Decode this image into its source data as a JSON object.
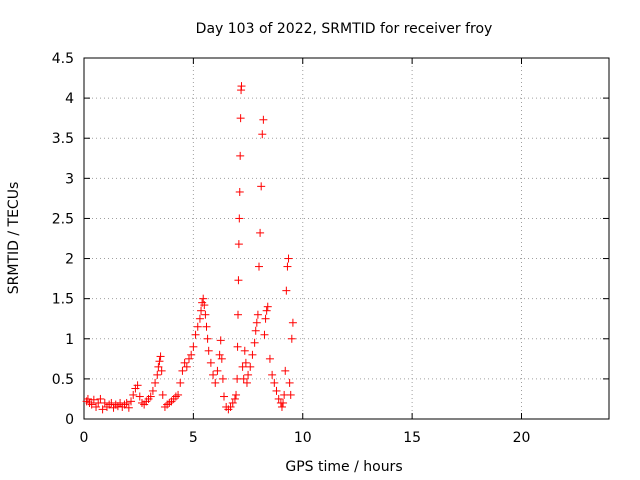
{
  "chart_data": {
    "type": "scatter",
    "title": "Day 103 of 2022, SRMTID for receiver froy",
    "xlabel": "GPS time / hours",
    "ylabel": "SRMTID / TECUs",
    "xlim": [
      0,
      24
    ],
    "ylim": [
      0,
      4.5
    ],
    "x_ticks": [
      0,
      5,
      10,
      15,
      20
    ],
    "y_ticks": [
      0,
      0.5,
      1,
      1.5,
      2,
      2.5,
      3,
      3.5,
      4,
      4.5
    ],
    "x_tick_labels": [
      "0",
      "5",
      "10",
      "15",
      "20"
    ],
    "y_tick_labels": [
      "0",
      "0.5",
      "1",
      "1.5",
      "2",
      "2.5",
      "3",
      "3.5",
      "4",
      "4.5"
    ],
    "grid": true,
    "marker": "+",
    "marker_color": "#ff0000",
    "series": [
      {
        "name": "SRMTID",
        "x": [
          0.12,
          0.18,
          0.25,
          0.35,
          0.45,
          0.55,
          0.65,
          0.75,
          0.85,
          0.95,
          1.05,
          1.15,
          1.25,
          1.35,
          1.45,
          1.55,
          1.65,
          1.75,
          1.85,
          1.95,
          2.05,
          2.15,
          2.25,
          2.35,
          2.45,
          2.55,
          2.65,
          2.75,
          2.85,
          2.95,
          3.05,
          3.15,
          3.25,
          3.35,
          3.4,
          3.45,
          3.5,
          3.55,
          3.6,
          3.7,
          3.8,
          3.9,
          4.0,
          4.1,
          4.2,
          4.3,
          4.4,
          4.5,
          4.6,
          4.7,
          4.8,
          4.9,
          5.0,
          5.1,
          5.2,
          5.3,
          5.35,
          5.4,
          5.45,
          5.5,
          5.55,
          5.6,
          5.65,
          5.7,
          5.8,
          5.9,
          6.0,
          6.1,
          6.2,
          6.25,
          6.3,
          6.35,
          6.4,
          6.5,
          6.6,
          6.7,
          6.8,
          6.9,
          6.95,
          7.0,
          7.02,
          7.04,
          7.06,
          7.08,
          7.1,
          7.12,
          7.14,
          7.16,
          7.18,
          7.2,
          7.25,
          7.3,
          7.35,
          7.4,
          7.45,
          7.5,
          7.6,
          7.7,
          7.8,
          7.85,
          7.9,
          7.95,
          8.0,
          8.05,
          8.1,
          8.15,
          8.2,
          8.25,
          8.3,
          8.35,
          8.4,
          8.5,
          8.6,
          8.7,
          8.8,
          8.9,
          9.0,
          9.05,
          9.1,
          9.15,
          9.2,
          9.25,
          9.3,
          9.35,
          9.4,
          9.45,
          9.5,
          9.55
        ],
        "y": [
          0.22,
          0.25,
          0.2,
          0.18,
          0.24,
          0.15,
          0.2,
          0.25,
          0.12,
          0.2,
          0.15,
          0.18,
          0.2,
          0.14,
          0.18,
          0.16,
          0.2,
          0.15,
          0.18,
          0.2,
          0.14,
          0.22,
          0.3,
          0.38,
          0.42,
          0.28,
          0.2,
          0.18,
          0.22,
          0.25,
          0.28,
          0.35,
          0.45,
          0.55,
          0.65,
          0.72,
          0.78,
          0.6,
          0.3,
          0.15,
          0.18,
          0.2,
          0.22,
          0.25,
          0.28,
          0.3,
          0.45,
          0.6,
          0.7,
          0.65,
          0.75,
          0.8,
          0.9,
          1.05,
          1.15,
          1.25,
          1.35,
          1.45,
          1.5,
          1.42,
          1.3,
          1.15,
          1.0,
          0.85,
          0.7,
          0.55,
          0.45,
          0.6,
          0.8,
          0.98,
          0.75,
          0.5,
          0.28,
          0.15,
          0.12,
          0.15,
          0.2,
          0.25,
          0.3,
          0.5,
          0.9,
          1.3,
          1.73,
          2.18,
          2.5,
          2.83,
          3.28,
          3.75,
          4.1,
          4.15,
          0.65,
          0.5,
          0.85,
          0.7,
          0.45,
          0.55,
          0.65,
          0.8,
          0.95,
          1.1,
          1.2,
          1.3,
          1.9,
          2.32,
          2.9,
          3.55,
          3.73,
          1.05,
          1.25,
          1.35,
          1.4,
          0.75,
          0.55,
          0.45,
          0.35,
          0.25,
          0.2,
          0.15,
          0.2,
          0.3,
          0.6,
          1.6,
          1.9,
          2.0,
          0.45,
          0.3,
          1.0,
          1.2
        ]
      }
    ]
  }
}
